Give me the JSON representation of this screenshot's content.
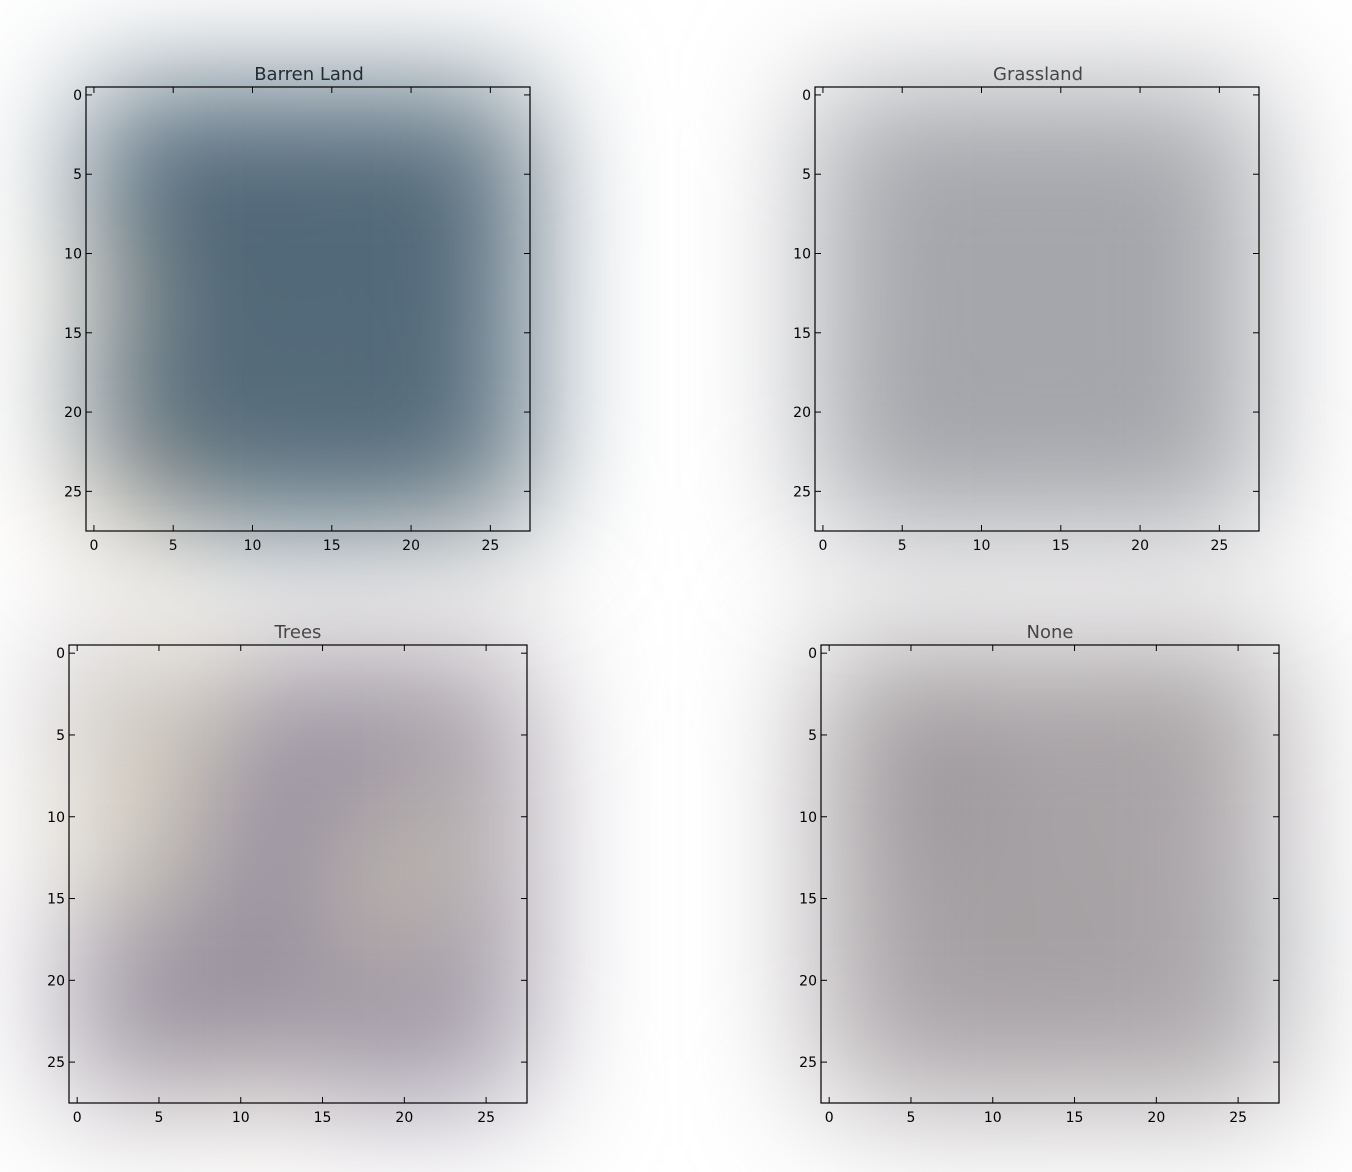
{
  "panels": [
    {
      "title": "Barren Land",
      "xticks": [
        "0",
        "5",
        "10",
        "15",
        "20",
        "25"
      ],
      "yticks": [
        "0",
        "5",
        "10",
        "15",
        "20",
        "25"
      ],
      "texture": {
        "base": "#54697a",
        "palette": [
          "#3e5772",
          "#4a6178",
          "#5d7882",
          "#697f83",
          "#435a70",
          "#6b7d7e",
          "#526b7d"
        ],
        "accents": [
          {
            "color": "#c7ae86",
            "patch": "left-middle"
          },
          {
            "color": "#c9ae8a",
            "patch": "bottom-left"
          },
          {
            "color": "#a99c8c",
            "patch": "bottom-right"
          },
          {
            "color": "#3b3f5c",
            "patch": "right-upper"
          }
        ]
      }
    },
    {
      "title": "Grassland",
      "xticks": [
        "0",
        "5",
        "10",
        "15",
        "20",
        "25"
      ],
      "yticks": [
        "0",
        "5",
        "10",
        "15",
        "20",
        "25"
      ],
      "texture": {
        "base": "#a7a8b0",
        "palette": [
          "#9c9fa6",
          "#b0afb6",
          "#a2a5a8",
          "#b6b3ba",
          "#999da0",
          "#aeb0b6",
          "#8f9698"
        ],
        "accents": []
      }
    },
    {
      "title": "Trees",
      "xticks": [
        "0",
        "5",
        "10",
        "15",
        "20",
        "25"
      ],
      "yticks": [
        "0",
        "5",
        "10",
        "15",
        "20",
        "25"
      ],
      "texture": {
        "base": "#978f9c",
        "palette": [
          "#8e8797",
          "#9d96a5",
          "#8a8290",
          "#a39aab",
          "#918a9a",
          "#b1adbf",
          "#857d88"
        ],
        "accents": [
          {
            "color": "#e8e3c8",
            "patch": "diagonal-band-left"
          },
          {
            "color": "#e6e0c2",
            "patch": "diagonal-band-right"
          },
          {
            "color": "#eae4c6",
            "patch": "bottom-middle"
          }
        ]
      }
    },
    {
      "title": "None",
      "xticks": [
        "0",
        "5",
        "10",
        "15",
        "20",
        "25"
      ],
      "yticks": [
        "0",
        "5",
        "10",
        "15",
        "20",
        "25"
      ],
      "texture": {
        "base": "#a9a4a8",
        "palette": [
          "#b0a9ae",
          "#a3a0a2",
          "#aba5ab",
          "#9fa09f",
          "#b5acb2",
          "#a5a8a6",
          "#b2a8a9"
        ],
        "accents": [
          {
            "color": "#1e1d1c",
            "patch": "dark-spots"
          },
          {
            "color": "#5f8a96",
            "patch": "right-edge-teal"
          }
        ]
      }
    }
  ]
}
